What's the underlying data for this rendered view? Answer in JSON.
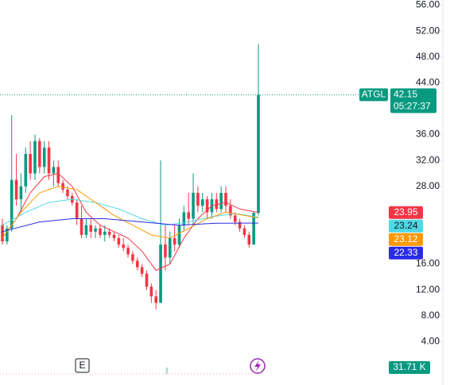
{
  "chart_data": {
    "type": "candlestick",
    "symbol": "ATGL",
    "last_price": 42.15,
    "countdown": "05:27:37",
    "volume": {
      "value": 31710,
      "label": "31.71 K"
    },
    "event_marker": "E",
    "up_color": "#089981",
    "down_color": "#f23645",
    "ylim": [
      0,
      56.8
    ],
    "yticks": [
      {
        "value": 56,
        "label": "56.00"
      },
      {
        "value": 52,
        "label": "52.00"
      },
      {
        "value": 48,
        "label": "48.00"
      },
      {
        "value": 44,
        "label": "44.00"
      },
      {
        "value": 36,
        "label": "36.00"
      },
      {
        "value": 32,
        "label": "32.00"
      },
      {
        "value": 28,
        "label": "28.00"
      },
      {
        "value": 16,
        "label": "16.00"
      },
      {
        "value": 12,
        "label": "12.00"
      },
      {
        "value": 8,
        "label": "8.00"
      },
      {
        "value": 4,
        "label": "4.00"
      }
    ],
    "grid": false,
    "ohlc": [
      [
        22,
        23,
        19,
        19.5
      ],
      [
        19.5,
        22,
        19,
        21.5
      ],
      [
        21.5,
        39,
        21,
        29
      ],
      [
        29,
        33,
        25,
        26
      ],
      [
        26,
        30,
        24,
        28
      ],
      [
        28,
        34,
        27,
        33
      ],
      [
        33,
        35,
        29,
        30
      ],
      [
        30,
        36,
        29,
        35
      ],
      [
        35,
        35.5,
        30,
        31
      ],
      [
        31,
        35,
        30,
        34
      ],
      [
        34,
        35,
        29,
        30
      ],
      [
        30,
        32,
        28,
        31
      ],
      [
        31,
        32,
        28,
        28.5
      ],
      [
        28.5,
        29,
        27,
        27.5
      ],
      [
        27.5,
        28,
        26,
        26.5
      ],
      [
        26.5,
        27,
        25,
        25.5
      ],
      [
        25.5,
        26,
        22,
        23
      ],
      [
        23,
        25,
        20,
        20.5
      ],
      [
        20.5,
        23,
        20,
        22
      ],
      [
        22,
        23,
        20,
        21
      ],
      [
        21,
        22,
        20,
        21.5
      ],
      [
        21.5,
        22,
        20,
        20.5
      ],
      [
        20.5,
        22,
        19.5,
        21
      ],
      [
        21,
        21.5,
        20,
        20.5
      ],
      [
        20.5,
        21,
        19.5,
        20
      ],
      [
        20,
        20.5,
        18.5,
        19
      ],
      [
        19,
        20,
        18,
        18.5
      ],
      [
        18.5,
        19,
        17,
        17.5
      ],
      [
        17.5,
        18,
        16,
        16.5
      ],
      [
        16.5,
        17,
        15,
        15.5
      ],
      [
        15.5,
        16,
        14,
        14.5
      ],
      [
        14.5,
        15,
        12,
        12.5
      ],
      [
        12.5,
        13,
        10,
        11
      ],
      [
        11,
        12,
        9,
        10
      ],
      [
        10,
        32,
        10,
        19
      ],
      [
        19,
        22,
        15,
        17
      ],
      [
        17,
        21,
        16,
        20
      ],
      [
        20,
        22,
        18,
        19
      ],
      [
        19,
        23,
        18.5,
        22
      ],
      [
        22,
        25,
        21,
        24
      ],
      [
        24,
        27,
        22,
        23
      ],
      [
        23,
        30,
        22,
        27
      ],
      [
        27,
        28,
        24,
        25
      ],
      [
        25,
        27,
        24,
        26
      ],
      [
        26,
        26.5,
        23,
        24
      ],
      [
        24,
        27,
        23,
        26
      ],
      [
        26,
        27,
        24,
        24.5
      ],
      [
        24.5,
        28,
        24,
        27
      ],
      [
        27,
        28,
        24,
        25
      ],
      [
        25,
        26,
        23,
        23.5
      ],
      [
        23.5,
        24,
        22,
        22.5
      ],
      [
        22.5,
        23,
        21,
        21.5
      ],
      [
        21.5,
        22,
        20,
        20.5
      ],
      [
        20.5,
        21,
        18.5,
        19
      ],
      [
        19,
        24,
        19,
        23.9
      ],
      [
        23.9,
        50,
        23.5,
        42.15
      ]
    ],
    "series": [
      {
        "color": "#f23645",
        "x": [
          0,
          3,
          6,
          9,
          12,
          15,
          18,
          21,
          24,
          27,
          30,
          33,
          36,
          39,
          42,
          45,
          48,
          51,
          55
        ],
        "values": [
          20,
          23,
          27,
          29.5,
          30,
          28,
          24,
          22,
          21,
          20,
          18,
          15,
          16,
          20,
          23,
          25,
          25.5,
          24.5,
          23.95
        ]
      },
      {
        "color": "#4dd9e6",
        "text_color": "#131722",
        "x": [
          0,
          5,
          10,
          15,
          20,
          25,
          30,
          35,
          40,
          45,
          50,
          55
        ],
        "values": [
          22,
          24,
          25.5,
          26,
          25.5,
          24.5,
          23,
          22,
          22.5,
          23.3,
          23.8,
          23.24
        ]
      },
      {
        "color": "#ff9800",
        "x": [
          0,
          4,
          8,
          12,
          16,
          20,
          24,
          28,
          32,
          36,
          40,
          44,
          48,
          52,
          55
        ],
        "values": [
          20,
          24,
          27,
          28,
          27.5,
          25.5,
          23.5,
          22,
          20.5,
          20,
          21.5,
          23,
          24,
          23.5,
          23.12
        ]
      },
      {
        "color": "#2a2ae6",
        "x": [
          0,
          8,
          15,
          22,
          30,
          38,
          46,
          55
        ],
        "values": [
          21,
          22.5,
          23,
          23,
          22.5,
          22,
          22.3,
          22.33
        ]
      }
    ]
  }
}
